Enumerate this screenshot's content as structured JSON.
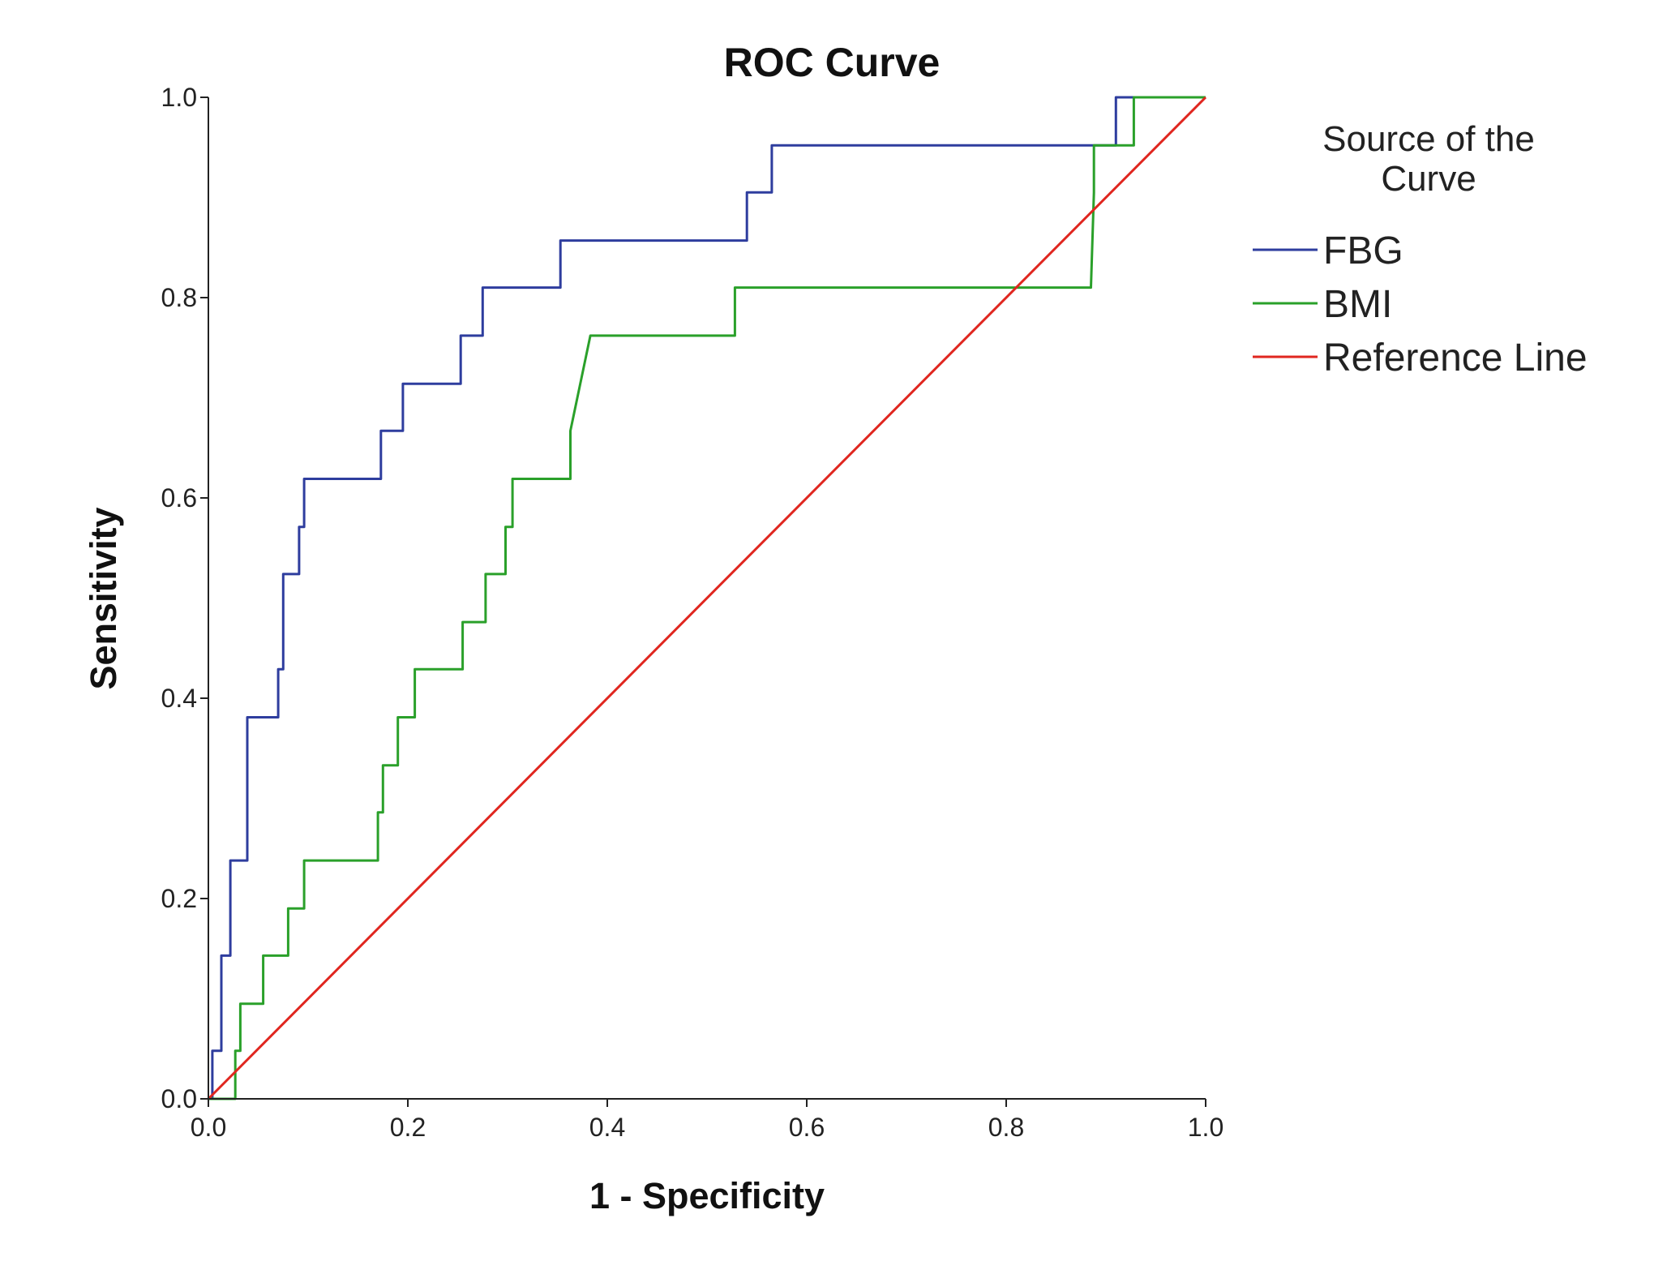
{
  "chart_data": {
    "type": "line",
    "title": "ROC Curve",
    "xlabel": "1 - Specificity",
    "ylabel": "Sensitivity",
    "xlim": [
      0,
      1
    ],
    "ylim": [
      0,
      1
    ],
    "x_ticks": [
      "0.0",
      "0.2",
      "0.4",
      "0.6",
      "0.8",
      "1.0"
    ],
    "y_ticks": [
      "0.0",
      "0.2",
      "0.4",
      "0.6",
      "0.8",
      "1.0"
    ],
    "grid": false,
    "legend": {
      "title_lines": [
        "Source of the",
        "Curve"
      ],
      "position": "right"
    },
    "series": [
      {
        "name": "FBG",
        "color": "#2e3d9e",
        "points": [
          [
            0.0,
            0.0
          ],
          [
            0.004,
            0.0
          ],
          [
            0.004,
            0.048
          ],
          [
            0.013,
            0.048
          ],
          [
            0.013,
            0.143
          ],
          [
            0.022,
            0.143
          ],
          [
            0.022,
            0.238
          ],
          [
            0.039,
            0.238
          ],
          [
            0.039,
            0.381
          ],
          [
            0.07,
            0.381
          ],
          [
            0.07,
            0.429
          ],
          [
            0.075,
            0.429
          ],
          [
            0.075,
            0.524
          ],
          [
            0.091,
            0.524
          ],
          [
            0.091,
            0.571
          ],
          [
            0.096,
            0.571
          ],
          [
            0.096,
            0.619
          ],
          [
            0.173,
            0.619
          ],
          [
            0.173,
            0.667
          ],
          [
            0.195,
            0.667
          ],
          [
            0.195,
            0.714
          ],
          [
            0.253,
            0.714
          ],
          [
            0.253,
            0.762
          ],
          [
            0.275,
            0.762
          ],
          [
            0.275,
            0.81
          ],
          [
            0.353,
            0.81
          ],
          [
            0.353,
            0.857
          ],
          [
            0.54,
            0.857
          ],
          [
            0.54,
            0.905
          ],
          [
            0.565,
            0.905
          ],
          [
            0.565,
            0.952
          ],
          [
            0.91,
            0.952
          ],
          [
            0.91,
            1.0
          ],
          [
            1.0,
            1.0
          ]
        ]
      },
      {
        "name": "BMI",
        "color": "#2aa02a",
        "points": [
          [
            0.0,
            0.0
          ],
          [
            0.027,
            0.0
          ],
          [
            0.027,
            0.048
          ],
          [
            0.032,
            0.048
          ],
          [
            0.032,
            0.095
          ],
          [
            0.055,
            0.095
          ],
          [
            0.055,
            0.143
          ],
          [
            0.08,
            0.143
          ],
          [
            0.08,
            0.19
          ],
          [
            0.096,
            0.19
          ],
          [
            0.096,
            0.238
          ],
          [
            0.17,
            0.238
          ],
          [
            0.17,
            0.286
          ],
          [
            0.175,
            0.286
          ],
          [
            0.175,
            0.333
          ],
          [
            0.19,
            0.333
          ],
          [
            0.19,
            0.381
          ],
          [
            0.207,
            0.381
          ],
          [
            0.207,
            0.429
          ],
          [
            0.255,
            0.429
          ],
          [
            0.255,
            0.476
          ],
          [
            0.278,
            0.476
          ],
          [
            0.278,
            0.524
          ],
          [
            0.298,
            0.524
          ],
          [
            0.298,
            0.571
          ],
          [
            0.305,
            0.571
          ],
          [
            0.305,
            0.619
          ],
          [
            0.363,
            0.619
          ],
          [
            0.363,
            0.667
          ],
          [
            0.383,
            0.762
          ],
          [
            0.528,
            0.762
          ],
          [
            0.528,
            0.81
          ],
          [
            0.885,
            0.81
          ],
          [
            0.888,
            0.905
          ],
          [
            0.888,
            0.952
          ],
          [
            0.928,
            0.952
          ],
          [
            0.928,
            1.0
          ],
          [
            1.0,
            1.0
          ]
        ]
      },
      {
        "name": "Reference Line",
        "color": "#e0261f",
        "points": [
          [
            0.0,
            0.0
          ],
          [
            1.0,
            1.0
          ]
        ]
      }
    ]
  }
}
